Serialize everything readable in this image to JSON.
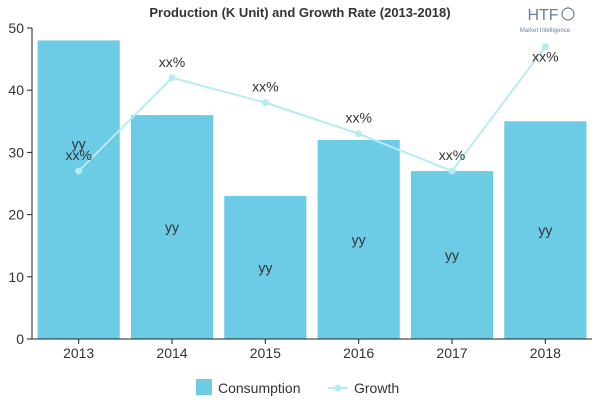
{
  "colors": {
    "bar": "#6ccbe5",
    "line": "#b5ecf2",
    "axis": "#222222",
    "text": "#333333",
    "logo_text": "#6a7f9c"
  },
  "logo": {
    "mark": "HTF",
    "tagline": "Market Intelligence"
  },
  "chart_data": {
    "type": "bar",
    "title": "Production (K Unit) and Growth Rate (2013-2018)",
    "categories": [
      "2013",
      "2014",
      "2015",
      "2016",
      "2017",
      "2018"
    ],
    "ylim": [
      0,
      50
    ],
    "yticks": [
      0,
      10,
      20,
      30,
      40,
      50
    ],
    "grid": false,
    "legend_position": "bottom",
    "series": [
      {
        "name": "Consumption",
        "type": "bar",
        "values": [
          48,
          36,
          23,
          32,
          27,
          35
        ],
        "labels": [
          "yy",
          "yy",
          "yy",
          "yy",
          "yy",
          "yy"
        ]
      },
      {
        "name": "Growth",
        "type": "line",
        "values": [
          27,
          42,
          38,
          33,
          27,
          47
        ],
        "labels": [
          "xx%",
          "xx%",
          "xx%",
          "xx%",
          "xx%",
          "xx%"
        ]
      }
    ]
  }
}
